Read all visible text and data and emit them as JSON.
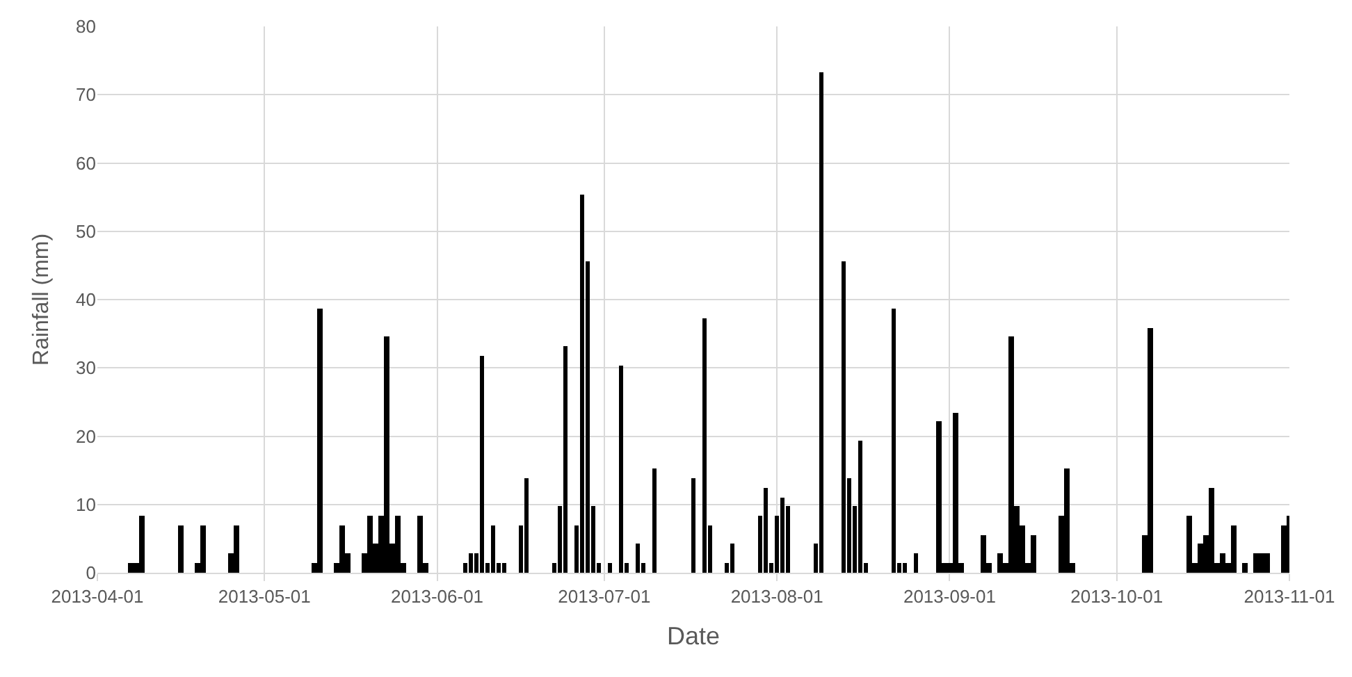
{
  "chart_data": {
    "type": "bar",
    "xlabel": "Date",
    "ylabel": "Rainfall (mm)",
    "x": [
      "2013-04-07",
      "2013-04-08",
      "2013-04-09",
      "2013-04-16",
      "2013-04-19",
      "2013-04-20",
      "2013-04-25",
      "2013-04-26",
      "2013-05-10",
      "2013-05-11",
      "2013-05-14",
      "2013-05-15",
      "2013-05-16",
      "2013-05-19",
      "2013-05-20",
      "2013-05-21",
      "2013-05-22",
      "2013-05-23",
      "2013-05-24",
      "2013-05-25",
      "2013-05-26",
      "2013-05-29",
      "2013-05-30",
      "2013-06-06",
      "2013-06-07",
      "2013-06-08",
      "2013-06-09",
      "2013-06-10",
      "2013-06-11",
      "2013-06-12",
      "2013-06-13",
      "2013-06-16",
      "2013-06-17",
      "2013-06-22",
      "2013-06-23",
      "2013-06-24",
      "2013-06-26",
      "2013-06-27",
      "2013-06-28",
      "2013-06-29",
      "2013-06-30",
      "2013-07-02",
      "2013-07-04",
      "2013-07-05",
      "2013-07-07",
      "2013-07-08",
      "2013-07-10",
      "2013-07-17",
      "2013-07-19",
      "2013-07-20",
      "2013-07-23",
      "2013-07-24",
      "2013-07-29",
      "2013-07-30",
      "2013-07-31",
      "2013-08-01",
      "2013-08-02",
      "2013-08-03",
      "2013-08-08",
      "2013-08-09",
      "2013-08-13",
      "2013-08-14",
      "2013-08-15",
      "2013-08-16",
      "2013-08-17",
      "2013-08-22",
      "2013-08-23",
      "2013-08-24",
      "2013-08-26",
      "2013-08-30",
      "2013-08-31",
      "2013-09-01",
      "2013-09-02",
      "2013-09-03",
      "2013-09-07",
      "2013-09-08",
      "2013-09-10",
      "2013-09-11",
      "2013-09-12",
      "2013-09-13",
      "2013-09-14",
      "2013-09-15",
      "2013-09-16",
      "2013-09-21",
      "2013-09-22",
      "2013-09-23",
      "2013-10-06",
      "2013-10-07",
      "2013-10-14",
      "2013-10-15",
      "2013-10-16",
      "2013-10-17",
      "2013-10-18",
      "2013-10-19",
      "2013-10-20",
      "2013-10-21",
      "2013-10-22",
      "2013-10-24",
      "2013-10-26",
      "2013-10-27",
      "2013-10-28",
      "2013-10-31",
      "2013-11-01"
    ],
    "series": [
      {
        "color": "#000000",
        "values": [
          1.5,
          1.5,
          8.3,
          7.0,
          1.5,
          7.0,
          2.8,
          7.0,
          1.5,
          38.6,
          1.5,
          7.0,
          2.8,
          2.8,
          8.3,
          4.2,
          8.3,
          34.6,
          4.2,
          8.3,
          1.5,
          8.3,
          1.5,
          1.5,
          2.8,
          2.8,
          31.8,
          1.5,
          7.0,
          1.5,
          1.5,
          7.0,
          13.9,
          1.5,
          9.7,
          33.2,
          7.0,
          55.3,
          45.6,
          9.7,
          1.5,
          1.5,
          30.3,
          1.5,
          4.2,
          1.5,
          15.2,
          13.9,
          37.2,
          7.0,
          1.5,
          4.2,
          8.3,
          12.5,
          1.5,
          8.3,
          11.0,
          9.7,
          4.2,
          73.2,
          45.6,
          13.9,
          9.7,
          19.4,
          1.5,
          38.6,
          1.5,
          1.5,
          2.8,
          22.1,
          1.5,
          1.5,
          23.5,
          1.5,
          5.5,
          1.5,
          2.8,
          1.5,
          34.6,
          9.7,
          7.0,
          1.5,
          5.5,
          8.3,
          15.2,
          1.5,
          5.5,
          35.9,
          8.3,
          1.5,
          4.2,
          5.5,
          12.5,
          1.5,
          2.8,
          1.5,
          7.0,
          1.5,
          2.8,
          2.8,
          2.8,
          7.0,
          8.3
        ]
      }
    ],
    "xlim": [
      "2013-04-01",
      "2013-11-01"
    ],
    "xticks": [
      "2013-04-01",
      "2013-05-01",
      "2013-06-01",
      "2013-07-01",
      "2013-08-01",
      "2013-09-01",
      "2013-10-01",
      "2013-11-01"
    ],
    "ylim": [
      0,
      80
    ],
    "yticks": [
      0,
      10,
      20,
      30,
      40,
      50,
      60,
      70,
      80
    ],
    "grid": true
  }
}
